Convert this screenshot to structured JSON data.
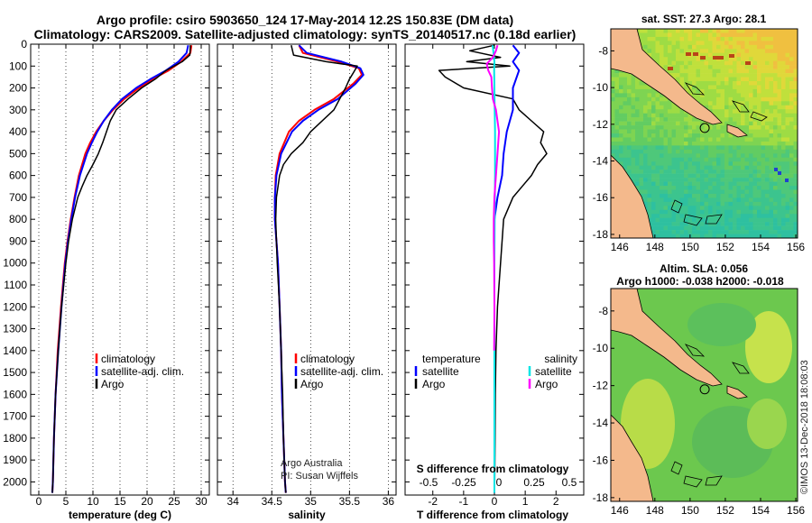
{
  "title": {
    "line1": "Argo profile: csiro 5903650_124 17-May-2014 12.2S 150.83E (DM data)",
    "line2": "Climatology: CARS2009. Satellite-adjusted climatology: synTS_20140517.nc (0.18d earlier)"
  },
  "attribution": {
    "group": "Argo Australia",
    "pi": "PI: Susan Wijffels"
  },
  "timestamp": "©IMOS 13-Dec-2018 18:08:03",
  "colors": {
    "climatology": "#ff0000",
    "satellite": "#0000ff",
    "argo": "#000000",
    "salinity_sat": "#00e5e5",
    "salinity_argo": "#ff00ff"
  },
  "depth_axis": {
    "ticks": [
      0,
      100,
      200,
      300,
      400,
      500,
      600,
      700,
      800,
      900,
      1000,
      1100,
      1200,
      1300,
      1400,
      1500,
      1600,
      1700,
      1800,
      1900,
      2000
    ],
    "range": [
      0,
      2060
    ]
  },
  "chart_data": [
    {
      "type": "line",
      "name": "temperature",
      "xlabel": "temperature (deg C)",
      "ylabel": "",
      "xlim": [
        -1.5,
        31.5
      ],
      "ylim": [
        2060,
        0
      ],
      "xticks": [
        0,
        5,
        10,
        15,
        20,
        25,
        30
      ],
      "legend": [
        "climatology",
        "satellite-adj. clim.",
        "Argo"
      ],
      "series": [
        {
          "name": "climatology",
          "color": "#ff0000",
          "width": 2,
          "depth": [
            5,
            40,
            80,
            120,
            160,
            200,
            250,
            300,
            350,
            400,
            450,
            500,
            600,
            700,
            800,
            900,
            1000,
            1200,
            1400,
            1600,
            1800,
            2000,
            2050
          ],
          "values": [
            28.2,
            28.0,
            26.3,
            24.0,
            21.0,
            18.5,
            15.8,
            13.7,
            12.0,
            10.6,
            9.5,
            8.6,
            7.4,
            6.6,
            5.9,
            5.3,
            4.8,
            4.1,
            3.5,
            3.1,
            2.8,
            2.6,
            2.5
          ]
        },
        {
          "name": "satellite-adj. clim.",
          "color": "#0000ff",
          "width": 2,
          "depth": [
            5,
            40,
            80,
            120,
            160,
            200,
            250,
            300,
            350,
            400,
            450,
            500,
            600,
            700,
            800,
            900,
            1000,
            1200,
            1400,
            1600,
            1800,
            2000,
            2050
          ],
          "values": [
            27.6,
            27.3,
            25.8,
            23.5,
            20.6,
            18.0,
            15.4,
            13.5,
            12.0,
            10.8,
            9.8,
            8.9,
            7.6,
            6.7,
            6.0,
            5.4,
            4.9,
            4.2,
            3.6,
            3.1,
            2.8,
            2.6,
            2.5
          ]
        },
        {
          "name": "Argo",
          "color": "#000000",
          "width": 1.5,
          "depth": [
            5,
            50,
            80,
            120,
            160,
            200,
            250,
            300,
            350,
            400,
            450,
            500,
            550,
            600,
            650,
            700,
            800,
            900,
            1000,
            1200,
            1400,
            1600,
            1800,
            2000,
            2050
          ],
          "values": [
            28.0,
            27.9,
            26.5,
            23.5,
            21.5,
            19.0,
            16.5,
            14.3,
            13.2,
            12.5,
            11.8,
            11.0,
            10.0,
            8.9,
            8.0,
            7.2,
            6.2,
            5.5,
            5.0,
            4.2,
            3.6,
            3.1,
            2.8,
            2.6,
            2.5
          ]
        }
      ]
    },
    {
      "type": "line",
      "name": "salinity",
      "xlabel": "salinity",
      "ylabel": "",
      "xlim": [
        33.8,
        36.1
      ],
      "ylim": [
        2060,
        0
      ],
      "xticks": [
        34,
        34.5,
        35,
        35.5,
        36
      ],
      "legend": [
        "climatology",
        "satellite-adj. clim.",
        "Argo"
      ],
      "series": [
        {
          "name": "climatology",
          "color": "#ff0000",
          "width": 2,
          "depth": [
            5,
            40,
            80,
            110,
            140,
            180,
            250,
            300,
            350,
            400,
            500,
            600,
            700,
            800,
            900,
            1000,
            1200,
            1400,
            1600,
            1800,
            2000,
            2050
          ],
          "values": [
            34.85,
            34.9,
            35.35,
            35.62,
            35.66,
            35.55,
            35.3,
            35.05,
            34.85,
            34.72,
            34.6,
            34.55,
            34.54,
            34.54,
            34.56,
            34.58,
            34.6,
            34.62,
            34.63,
            34.65,
            34.67,
            34.68
          ]
        },
        {
          "name": "satellite-adj. clim.",
          "color": "#0000ff",
          "width": 2,
          "depth": [
            5,
            40,
            80,
            110,
            140,
            180,
            250,
            300,
            350,
            400,
            500,
            600,
            700,
            800,
            900,
            1000,
            1200,
            1400,
            1600,
            1800,
            2000,
            2050
          ],
          "values": [
            34.85,
            34.95,
            35.4,
            35.64,
            35.68,
            35.58,
            35.35,
            35.1,
            34.9,
            34.76,
            34.62,
            34.56,
            34.54,
            34.54,
            34.56,
            34.58,
            34.6,
            34.62,
            34.63,
            34.65,
            34.67,
            34.68
          ]
        },
        {
          "name": "Argo",
          "color": "#000000",
          "width": 1.5,
          "depth": [
            5,
            50,
            80,
            100,
            130,
            160,
            200,
            300,
            400,
            450,
            500,
            550,
            600,
            700,
            800,
            900,
            1000,
            1200,
            1400,
            1600,
            1800,
            2000,
            2050
          ],
          "values": [
            34.75,
            34.78,
            35.2,
            35.6,
            35.55,
            35.5,
            35.45,
            35.3,
            35.0,
            34.9,
            34.75,
            34.65,
            34.6,
            34.56,
            34.55,
            34.56,
            34.57,
            34.6,
            34.62,
            34.64,
            34.65,
            34.67,
            34.68
          ]
        }
      ]
    },
    {
      "type": "line",
      "name": "differences",
      "xlabel": "T difference from climatology",
      "ylabel": "",
      "xlim": [
        -2.9,
        2.9
      ],
      "ylim": [
        2060,
        0
      ],
      "xticks": [
        -2,
        -1,
        0,
        1,
        2
      ],
      "secondary_title": "S difference from climatology",
      "secondary_xticks": [
        "-0.5",
        "-0.25",
        "0",
        "0.25",
        "0.5"
      ],
      "legend": [
        "temperature",
        "satellite",
        "Argo",
        "salinity",
        "satellite",
        "Argo"
      ],
      "series": [
        {
          "name": "T Argo",
          "color": "#000000",
          "width": 1.5,
          "depth": [
            5,
            30,
            60,
            80,
            100,
            120,
            150,
            200,
            250,
            300,
            350,
            400,
            450,
            500,
            550,
            600,
            650,
            700,
            800,
            900,
            1000,
            1200,
            1400,
            1600,
            1800,
            2000,
            2050
          ],
          "values": [
            0.0,
            -0.8,
            0.2,
            -0.9,
            0.5,
            -1.8,
            -1.6,
            -1.0,
            0.6,
            0.8,
            1.2,
            1.6,
            1.5,
            1.7,
            1.4,
            1.2,
            0.9,
            0.6,
            0.3,
            0.25,
            0.2,
            0.1,
            0.05,
            0.03,
            0.02,
            0.01,
            0.0
          ]
        },
        {
          "name": "T satellite",
          "color": "#0000ff",
          "width": 2,
          "depth": [
            5,
            40,
            80,
            120,
            200,
            300,
            400,
            500,
            600,
            700,
            800,
            900,
            1000,
            1200,
            1400,
            1600,
            1800,
            2000,
            2050
          ],
          "values": [
            0.6,
            0.8,
            0.6,
            0.8,
            0.6,
            0.6,
            0.4,
            0.3,
            0.25,
            0.1,
            0.0,
            0.0,
            0.0,
            0.0,
            0.0,
            0.0,
            0.0,
            0.0,
            0.0
          ]
        },
        {
          "name": "S satellite",
          "color": "#00e5e5",
          "width": 2,
          "depth": [
            5,
            40,
            80,
            120,
            200,
            300,
            400,
            600,
            800,
            1000,
            1200,
            1400,
            1600,
            1800,
            2000,
            2050
          ],
          "values": [
            -0.06,
            -0.03,
            0.0,
            -0.01,
            0.0,
            0.01,
            0.02,
            0.02,
            0.01,
            0.0,
            0.0,
            0.0,
            0.0,
            0.0,
            0.0,
            0.0
          ]
        },
        {
          "name": "S Argo",
          "color": "#ff00ff",
          "width": 2,
          "depth": [
            5,
            30,
            60,
            90,
            120,
            150,
            200,
            250,
            300,
            350,
            400,
            500,
            600,
            700,
            800,
            900,
            1000,
            1200,
            1400
          ],
          "values": [
            0.1,
            0.05,
            -0.05,
            -0.25,
            -0.2,
            -0.1,
            -0.08,
            -0.05,
            0.05,
            0.1,
            0.15,
            0.1,
            0.05,
            0.0,
            -0.02,
            -0.02,
            -0.01,
            0.0,
            -0.01
          ]
        }
      ]
    },
    {
      "type": "heatmap",
      "name": "sst",
      "title": "sat. SST: 27.3 Argo: 28.1",
      "xlim": [
        145.5,
        156.1
      ],
      "ylim": [
        -18.2,
        -6.8
      ],
      "xticks": [
        146,
        148,
        150,
        152,
        154,
        156
      ],
      "yticks": [
        -8,
        -10,
        -12,
        -14,
        -16,
        -18
      ],
      "profile_location": [
        150.83,
        -12.2
      ]
    },
    {
      "type": "heatmap",
      "name": "sla",
      "title": "Altim. SLA: 0.056",
      "subtitle": "Argo h1000: -0.038 h2000: -0.018",
      "xlim": [
        145.5,
        156.1
      ],
      "ylim": [
        -18.2,
        -6.8
      ],
      "xticks": [
        146,
        148,
        150,
        152,
        154,
        156
      ],
      "yticks": [
        -8,
        -10,
        -12,
        -14,
        -16,
        -18
      ],
      "profile_location": [
        150.83,
        -12.2
      ]
    }
  ]
}
